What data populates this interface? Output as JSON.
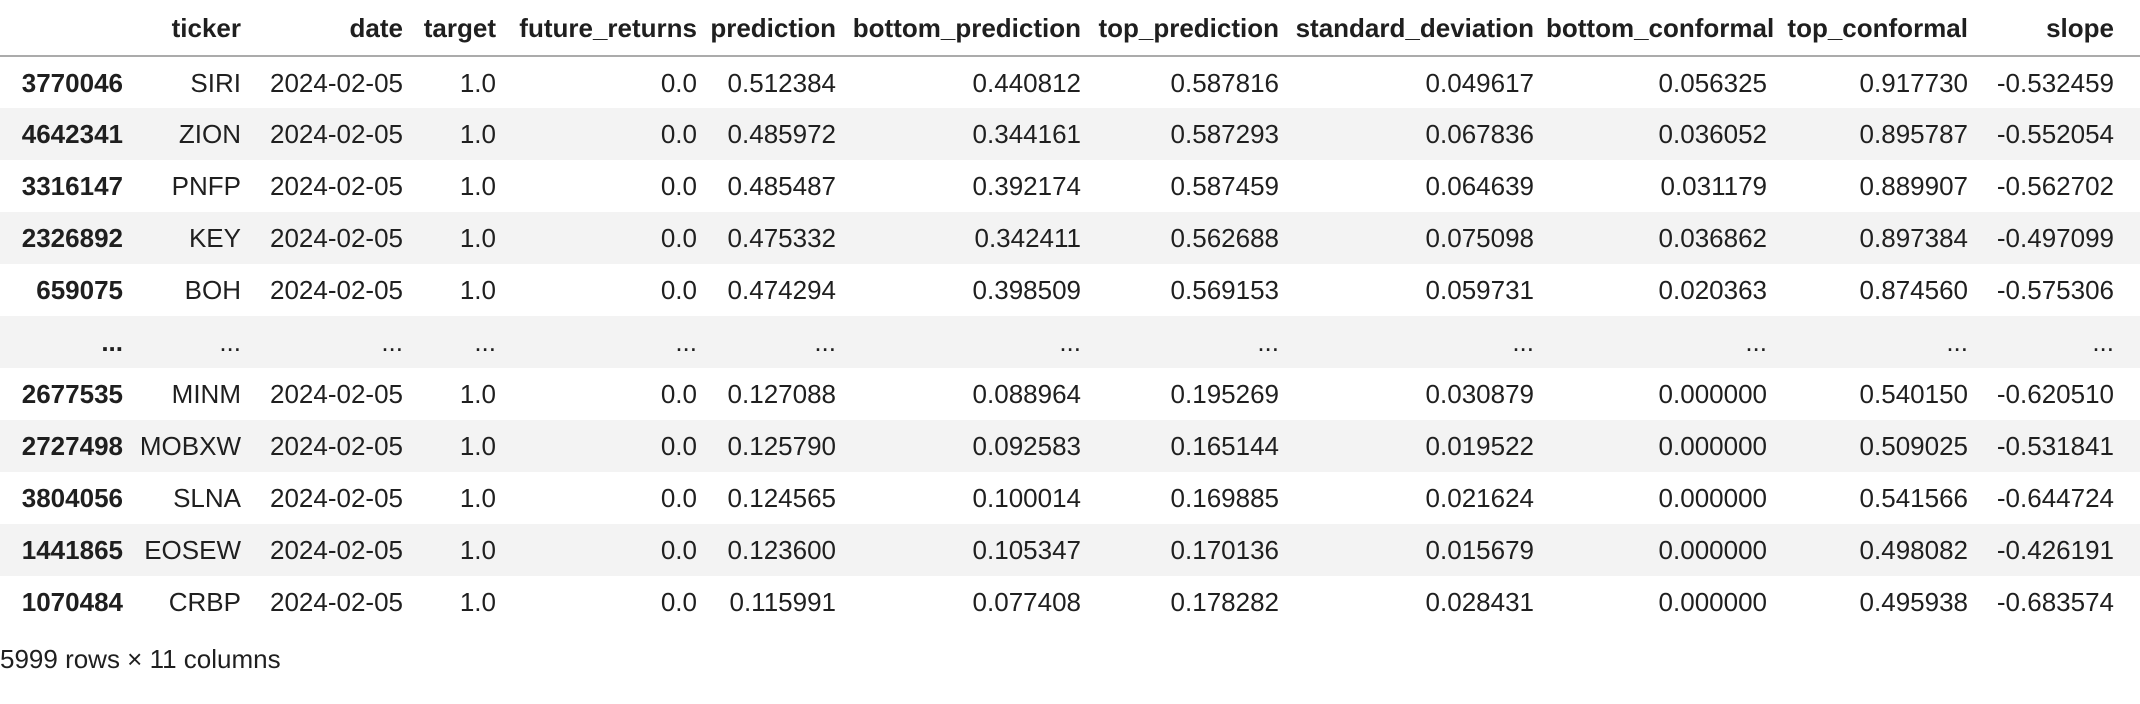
{
  "table": {
    "index_header": "",
    "columns": [
      "ticker",
      "date",
      "target",
      "future_returns",
      "prediction",
      "bottom_prediction",
      "top_prediction",
      "standard_deviation",
      "bottom_conformal",
      "top_conformal",
      "slope"
    ],
    "rows": [
      {
        "index": "3770046",
        "cells": [
          "SIRI",
          "2024-02-05",
          "1.0",
          "0.0",
          "0.512384",
          "0.440812",
          "0.587816",
          "0.049617",
          "0.056325",
          "0.917730",
          "-0.532459"
        ]
      },
      {
        "index": "4642341",
        "cells": [
          "ZION",
          "2024-02-05",
          "1.0",
          "0.0",
          "0.485972",
          "0.344161",
          "0.587293",
          "0.067836",
          "0.036052",
          "0.895787",
          "-0.552054"
        ]
      },
      {
        "index": "3316147",
        "cells": [
          "PNFP",
          "2024-02-05",
          "1.0",
          "0.0",
          "0.485487",
          "0.392174",
          "0.587459",
          "0.064639",
          "0.031179",
          "0.889907",
          "-0.562702"
        ]
      },
      {
        "index": "2326892",
        "cells": [
          "KEY",
          "2024-02-05",
          "1.0",
          "0.0",
          "0.475332",
          "0.342411",
          "0.562688",
          "0.075098",
          "0.036862",
          "0.897384",
          "-0.497099"
        ]
      },
      {
        "index": "659075",
        "cells": [
          "BOH",
          "2024-02-05",
          "1.0",
          "0.0",
          "0.474294",
          "0.398509",
          "0.569153",
          "0.059731",
          "0.020363",
          "0.874560",
          "-0.575306"
        ]
      },
      {
        "index": "...",
        "cells": [
          "...",
          "...",
          "...",
          "...",
          "...",
          "...",
          "...",
          "...",
          "...",
          "...",
          "..."
        ]
      },
      {
        "index": "2677535",
        "cells": [
          "MINM",
          "2024-02-05",
          "1.0",
          "0.0",
          "0.127088",
          "0.088964",
          "0.195269",
          "0.030879",
          "0.000000",
          "0.540150",
          "-0.620510"
        ]
      },
      {
        "index": "2727498",
        "cells": [
          "MOBXW",
          "2024-02-05",
          "1.0",
          "0.0",
          "0.125790",
          "0.092583",
          "0.165144",
          "0.019522",
          "0.000000",
          "0.509025",
          "-0.531841"
        ]
      },
      {
        "index": "3804056",
        "cells": [
          "SLNA",
          "2024-02-05",
          "1.0",
          "0.0",
          "0.124565",
          "0.100014",
          "0.169885",
          "0.021624",
          "0.000000",
          "0.541566",
          "-0.644724"
        ]
      },
      {
        "index": "1441865",
        "cells": [
          "EOSEW",
          "2024-02-05",
          "1.0",
          "0.0",
          "0.123600",
          "0.105347",
          "0.170136",
          "0.015679",
          "0.000000",
          "0.498082",
          "-0.426191"
        ]
      },
      {
        "index": "1070484",
        "cells": [
          "CRBP",
          "2024-02-05",
          "1.0",
          "0.0",
          "0.115991",
          "0.077408",
          "0.178282",
          "0.028431",
          "0.000000",
          "0.495938",
          "-0.683574"
        ]
      }
    ],
    "summary": "5999 rows × 11 columns"
  },
  "colors": {
    "row_stripe": "#f3f3f3",
    "header_border": "#ababab",
    "text": "#1f1f1f",
    "background": "#ffffff"
  }
}
